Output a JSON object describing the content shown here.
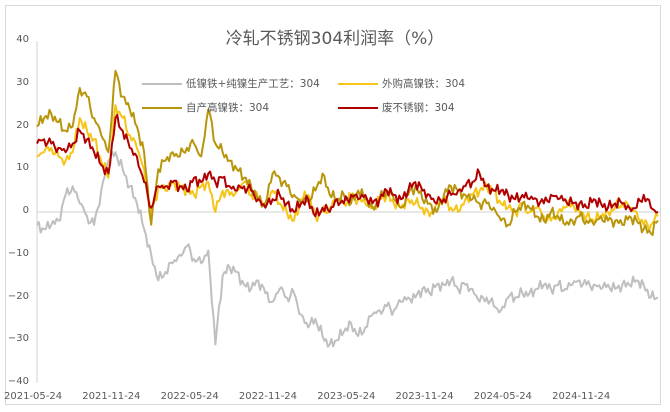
{
  "chart_data": {
    "type": "line",
    "title": "冷轧不锈钢304利润率（%）",
    "xlabel": "",
    "ylabel": "",
    "ylim": [
      -40,
      40
    ],
    "yticks": [
      40,
      30,
      20,
      10,
      0,
      -10,
      -20,
      -30,
      -40
    ],
    "xtick_labels": [
      "2021-05-24",
      "2021-11-24",
      "2022-05-24",
      "2022-11-24",
      "2023-05-24",
      "2023-11-24",
      "2024-05-24",
      "2024-11-24"
    ],
    "grid": false,
    "zero_line": true,
    "legend_position": "top-inside",
    "x_start": "2021-05-24",
    "x_end": "2025-03",
    "sampling": "approx. semi-monthly",
    "series": [
      {
        "name": "低镍铁+纯镍生产工艺：304",
        "color": "#bfbfbf",
        "values": [
          -3,
          -4,
          -3,
          -2,
          4,
          6,
          2,
          -1,
          -3,
          5,
          12,
          14,
          10,
          6,
          2,
          -4,
          -10,
          -16,
          -14,
          -12,
          -10,
          -8,
          -11,
          -12,
          -9,
          -31,
          -15,
          -13,
          -14,
          -17,
          -18,
          -16,
          -19,
          -21,
          -18,
          -20,
          -19,
          -24,
          -27,
          -25,
          -29,
          -31,
          -30,
          -28,
          -26,
          -29,
          -27,
          -24,
          -23,
          -22,
          -23,
          -21,
          -20,
          -20,
          -18,
          -19,
          -17,
          -17,
          -16,
          -18,
          -17,
          -18,
          -21,
          -20,
          -22,
          -23,
          -20,
          -20,
          -19,
          -19,
          -18,
          -17,
          -18,
          -17,
          -18,
          -17,
          -16,
          -17,
          -17,
          -18,
          -17,
          -18,
          -17,
          -17,
          -16,
          -17,
          -20,
          -20
        ]
      },
      {
        "name": "外购高镍铁：304",
        "color": "#f5c518",
        "values": [
          13,
          14,
          15,
          13,
          12,
          14,
          22,
          19,
          17,
          12,
          8,
          25,
          22,
          18,
          15,
          10,
          -1,
          6,
          5,
          7,
          6,
          5,
          4,
          6,
          7,
          0,
          5,
          4,
          5,
          7,
          4,
          3,
          2,
          5,
          2,
          0,
          -2,
          3,
          4,
          -1,
          0,
          1,
          3,
          2,
          4,
          3,
          2,
          1,
          3,
          4,
          2,
          1,
          3,
          2,
          1,
          -1,
          2,
          3,
          1,
          0,
          3,
          4,
          5,
          6,
          5,
          2,
          1,
          0,
          2,
          0,
          1,
          -1,
          -2,
          0,
          1,
          2,
          0,
          -1,
          -2,
          -1,
          0,
          1,
          2,
          1,
          0,
          -3,
          -3,
          -1
        ]
      },
      {
        "name": "自产高镍铁：304",
        "color": "#b8960c",
        "values": [
          20,
          22,
          23,
          21,
          19,
          20,
          29,
          27,
          22,
          18,
          14,
          33,
          27,
          24,
          20,
          14,
          -3,
          10,
          12,
          14,
          13,
          15,
          16,
          13,
          24,
          16,
          14,
          12,
          10,
          8,
          6,
          3,
          2,
          9,
          8,
          6,
          4,
          2,
          3,
          5,
          9,
          4,
          3,
          4,
          2,
          5,
          3,
          1,
          3,
          5,
          3,
          1,
          4,
          6,
          3,
          2,
          0,
          4,
          6,
          5,
          4,
          3,
          2,
          2,
          1,
          -2,
          -3,
          0,
          2,
          1,
          -1,
          -2,
          0,
          -1,
          -3,
          -2,
          -1,
          -2,
          -3,
          -1,
          -2,
          -2,
          -3,
          -1,
          -2,
          -4,
          -5,
          -2
        ]
      },
      {
        "name": "废不锈钢：304",
        "color": "#b00000",
        "values": [
          16,
          17,
          16,
          15,
          14,
          16,
          19,
          17,
          14,
          11,
          9,
          22,
          19,
          15,
          13,
          7,
          1,
          6,
          6,
          7,
          6,
          5,
          8,
          7,
          9,
          7,
          8,
          6,
          5,
          6,
          5,
          3,
          1,
          3,
          4,
          2,
          0,
          2,
          3,
          -1,
          1,
          0,
          3,
          2,
          4,
          3,
          4,
          2,
          3,
          5,
          4,
          3,
          5,
          7,
          5,
          4,
          2,
          3,
          4,
          5,
          6,
          7,
          9,
          6,
          5,
          5,
          4,
          3,
          4,
          3,
          3,
          2,
          4,
          3,
          3,
          2,
          2,
          1,
          3,
          2,
          1,
          2,
          2,
          1,
          1,
          4,
          1,
          0
        ]
      }
    ]
  },
  "legend": [
    {
      "label": "低镍铁+纯镍生产工艺：304",
      "color": "#bfbfbf"
    },
    {
      "label": "外购高镍铁：304",
      "color": "#f5c518"
    },
    {
      "label": "自产高镍铁：304",
      "color": "#b8960c"
    },
    {
      "label": "废不锈钢：304",
      "color": "#b00000"
    }
  ]
}
